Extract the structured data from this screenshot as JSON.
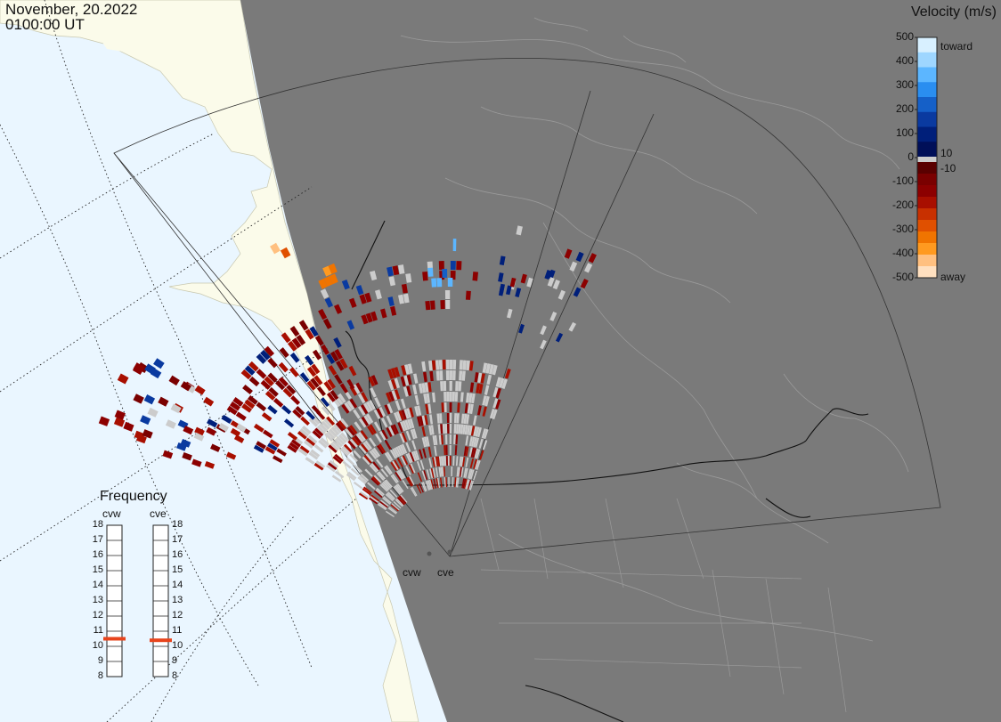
{
  "header": {
    "date": "November, 20.2022",
    "time": "0100:00 UT"
  },
  "velocity_scale": {
    "title": "Velocity (m/s)",
    "ticks": [
      "500",
      "400",
      "300",
      "200",
      "100",
      "0",
      "-100",
      "-200",
      "-300",
      "-400",
      "-500"
    ],
    "upper_label": "toward",
    "lower_label": "away",
    "threshold_pos": "10",
    "threshold_neg": "-10",
    "colors_toward": [
      "#d8f0ff",
      "#9ed6ff",
      "#5cb6ff",
      "#2a8ef0",
      "#1560c8",
      "#0a3aa0",
      "#001f7a",
      "#000f58"
    ],
    "colors_away": [
      "#5a0000",
      "#7a0000",
      "#8c0000",
      "#a80f00",
      "#c83000",
      "#e05000",
      "#f07400",
      "#ff9a20",
      "#ffc080",
      "#ffe0c0"
    ],
    "ground_scatter_color": "#cccccc"
  },
  "frequency_panel": {
    "title": "Frequency",
    "radars": [
      {
        "code": "cvw",
        "ticks": [
          "18",
          "17",
          "16",
          "15",
          "14",
          "13",
          "12",
          "11",
          "10",
          "9",
          "8"
        ],
        "value_mhz": 10.5
      },
      {
        "code": "cve",
        "ticks": [
          "18",
          "17",
          "16",
          "15",
          "14",
          "13",
          "12",
          "11",
          "10",
          "9",
          "8"
        ],
        "value_mhz": 10.4
      }
    ],
    "marker_color": "#e8441c"
  },
  "map": {
    "ocean_color": "#eaf6ff",
    "land_color": "#fbfbea",
    "night_color": "#7a7a7a",
    "radar_labels": [
      "cvw",
      "cve"
    ]
  }
}
